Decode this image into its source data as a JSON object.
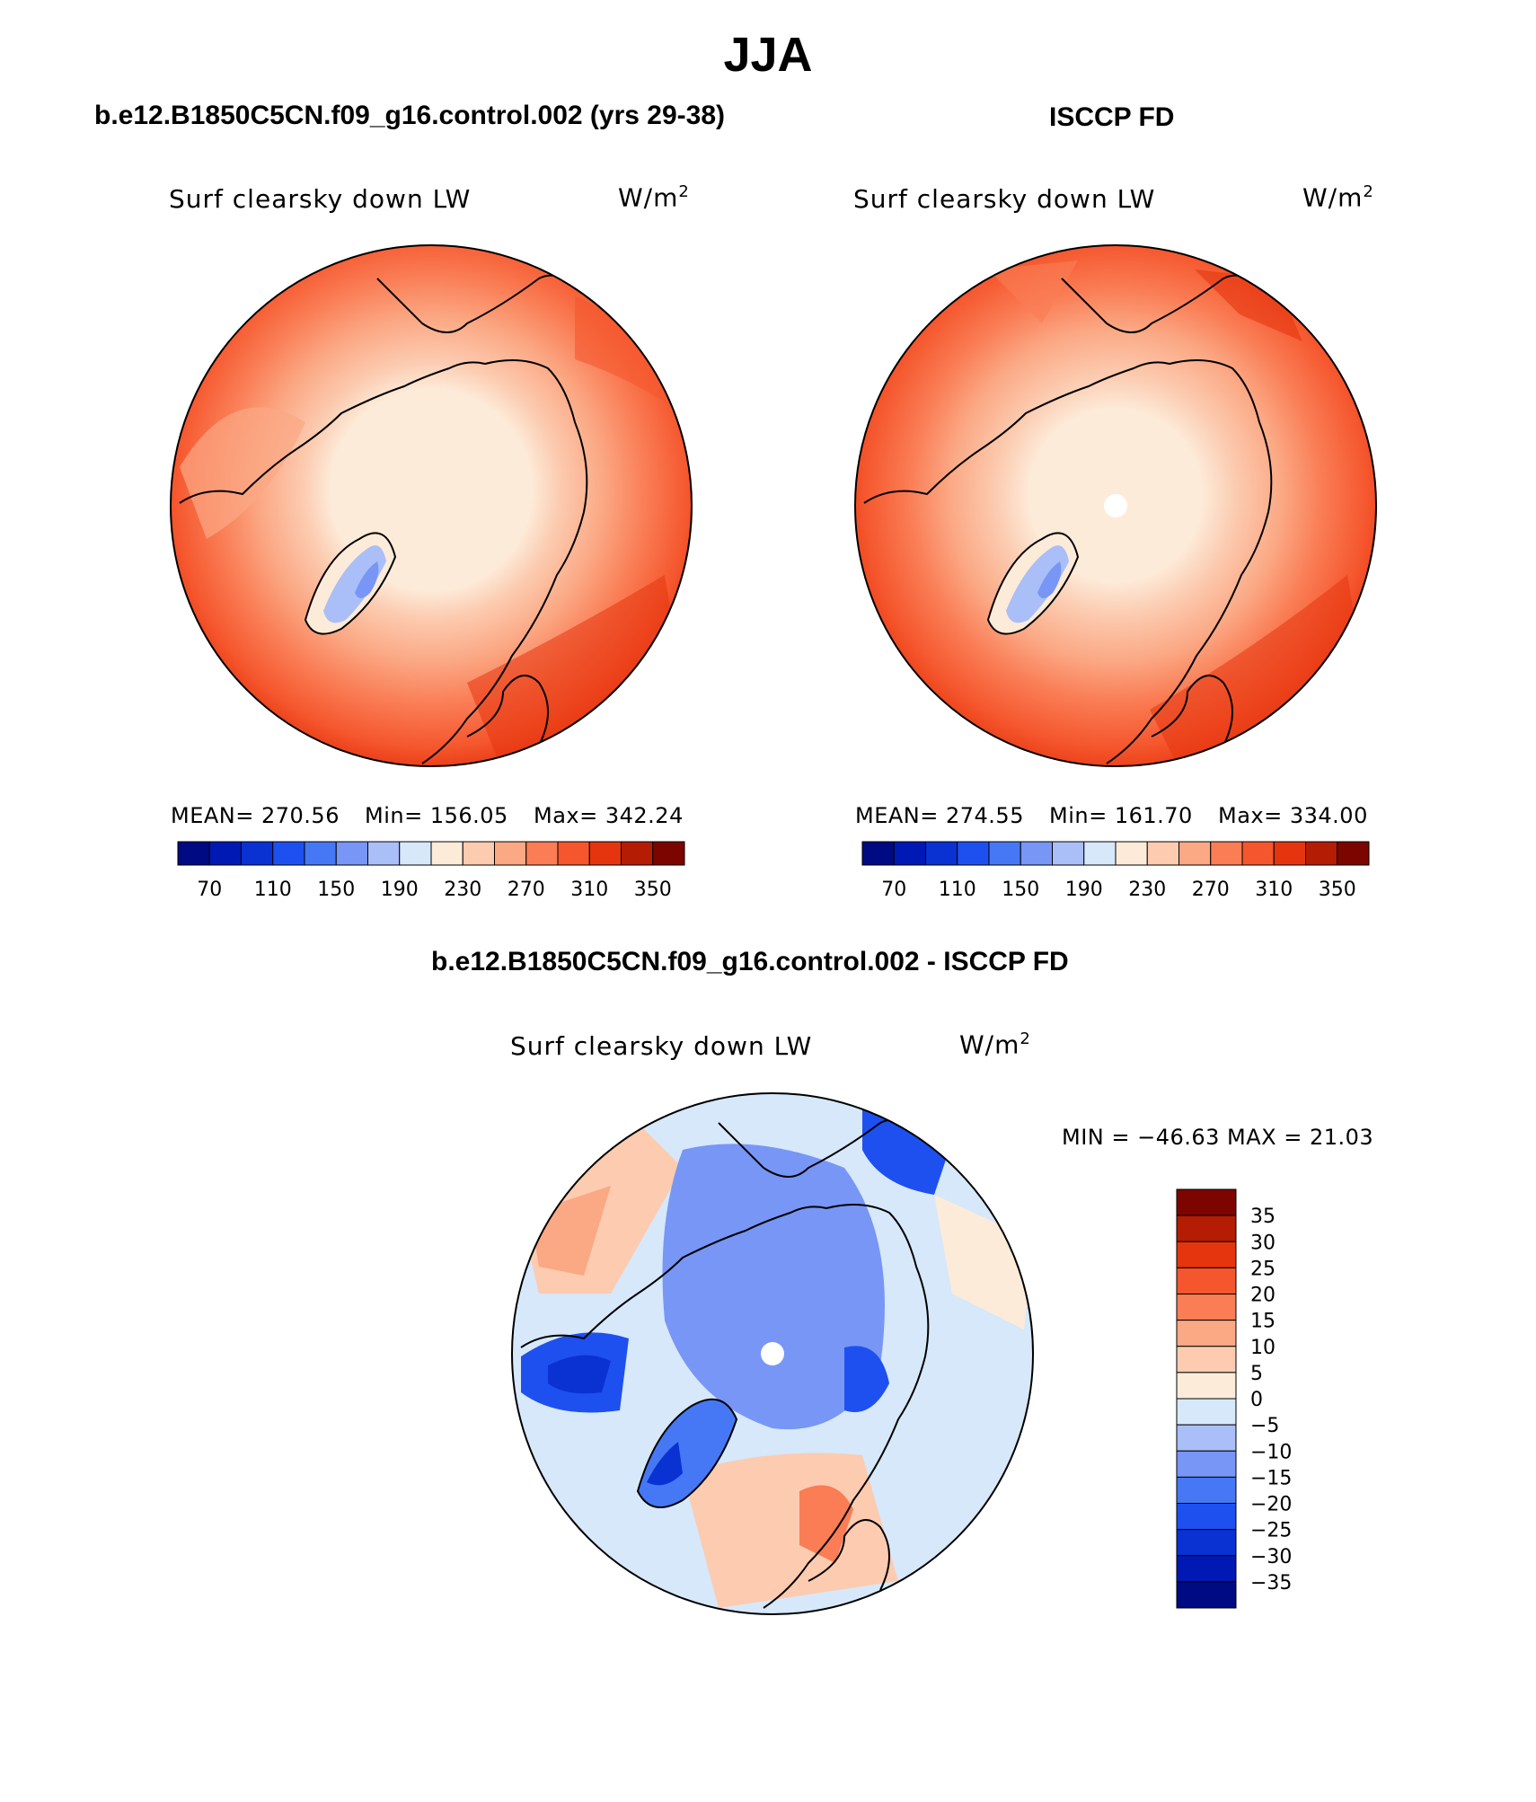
{
  "title": "JJA",
  "variable": "Surf clearsky down LW",
  "units": {
    "base": "W/m",
    "exp": "2"
  },
  "panels": {
    "model": {
      "title": "b.e12.B1850C5CN.f09_g16.control.002 (yrs 29-38)",
      "variable": "Surf clearsky down LW",
      "mean_label": "MEAN= 270.56",
      "min_label": "Min= 156.05",
      "max_label": "Max= 342.24"
    },
    "obs": {
      "title": "ISCCP FD",
      "variable": "Surf clearsky down LW",
      "mean_label": "MEAN= 274.55",
      "min_label": "Min= 161.70",
      "max_label": "Max= 334.00"
    },
    "diff": {
      "title": "b.e12.B1850C5CN.f09_g16.control.002 - ISCCP FD",
      "variable": "Surf clearsky down LW",
      "minmax_label": "MIN = −46.63 MAX =   21.03"
    }
  },
  "colorbar_abs": {
    "colors": [
      "#000a82",
      "#0019b4",
      "#0a32d2",
      "#1e50f0",
      "#4678f5",
      "#7896f5",
      "#aabef8",
      "#d6e8fa",
      "#fdebd9",
      "#fccbb0",
      "#fba884",
      "#fa7d55",
      "#f5562d",
      "#e5350f",
      "#b41c04",
      "#7d0500"
    ],
    "tick_labels": [
      "70",
      "110",
      "150",
      "190",
      "230",
      "270",
      "310",
      "350"
    ]
  },
  "colorbar_diff": {
    "colors": [
      "#7d0500",
      "#b41c04",
      "#e5350f",
      "#f5562d",
      "#fa7d55",
      "#fba884",
      "#fccbb0",
      "#fdebd9",
      "#d6e8fa",
      "#aabef8",
      "#7896f5",
      "#4678f5",
      "#1e50f0",
      "#0a32d2",
      "#0019b4",
      "#000a82"
    ],
    "tick_labels": [
      "35",
      "30",
      "25",
      "20",
      "15",
      "10",
      "5",
      "0",
      "−5",
      "−10",
      "−15",
      "−20",
      "−25",
      "−30",
      "−35"
    ]
  }
}
